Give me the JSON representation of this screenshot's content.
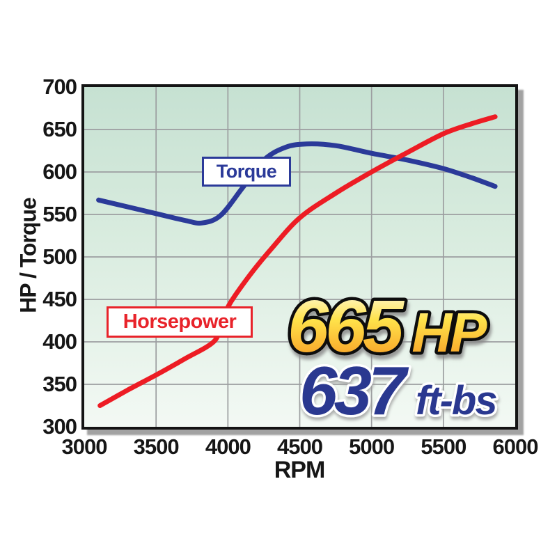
{
  "page": {
    "background": "#ffffff"
  },
  "colors": {
    "torque_line": "#2b3a99",
    "horsepower_line": "#ed1c24",
    "grid": "#9c9ea0",
    "plot_border": "#141414",
    "plot_shadow": "#a2a2a2",
    "plot_bg_top": "#c6e1d2",
    "plot_bg_bottom": "#f3f9f4",
    "tick_text": "#161616",
    "hp_callout_gradient_top": "#fffdf0",
    "hp_callout_gradient_mid": "#ffe24a",
    "hp_callout_gradient_bottom": "#f6921e",
    "hp_callout_outline": "#111111",
    "tq_callout_fill": "#2b3990",
    "tq_callout_outline": "#ffffff"
  },
  "labels": {
    "torque": "Torque",
    "horsepower": "Horsepower"
  },
  "chart_data": {
    "type": "line",
    "title": "",
    "xlabel": "RPM",
    "ylabel": "HP / Torque",
    "xlim": [
      3000,
      6000
    ],
    "ylim": [
      300,
      700
    ],
    "x_ticks": [
      3000,
      3500,
      4000,
      4500,
      5000,
      5500,
      6000
    ],
    "y_ticks": [
      300,
      350,
      400,
      450,
      500,
      550,
      600,
      650,
      700
    ],
    "grid": true,
    "legend_position": "on-curve-boxes",
    "series": [
      {
        "name": "Torque",
        "color": "#2b3a99",
        "points": [
          [
            3100,
            567
          ],
          [
            3300,
            559
          ],
          [
            3500,
            551
          ],
          [
            3700,
            543
          ],
          [
            3820,
            540
          ],
          [
            3950,
            549
          ],
          [
            4100,
            581
          ],
          [
            4250,
            614
          ],
          [
            4400,
            629
          ],
          [
            4550,
            633
          ],
          [
            4750,
            631
          ],
          [
            5000,
            622
          ],
          [
            5250,
            614
          ],
          [
            5500,
            604
          ],
          [
            5700,
            593
          ],
          [
            5860,
            583
          ]
        ]
      },
      {
        "name": "Horsepower",
        "color": "#ed1c24",
        "points": [
          [
            3110,
            325
          ],
          [
            3300,
            343
          ],
          [
            3500,
            361
          ],
          [
            3700,
            380
          ],
          [
            3900,
            400
          ],
          [
            3950,
            420
          ],
          [
            4010,
            444
          ],
          [
            4150,
            478
          ],
          [
            4300,
            509
          ],
          [
            4500,
            546
          ],
          [
            4750,
            575
          ],
          [
            5000,
            600
          ],
          [
            5250,
            623
          ],
          [
            5500,
            645
          ],
          [
            5700,
            657
          ],
          [
            5860,
            665
          ]
        ]
      }
    ],
    "callouts": {
      "hp_value": "665",
      "hp_unit": "HP",
      "tq_value": "637",
      "tq_unit": "ft-bs"
    }
  }
}
